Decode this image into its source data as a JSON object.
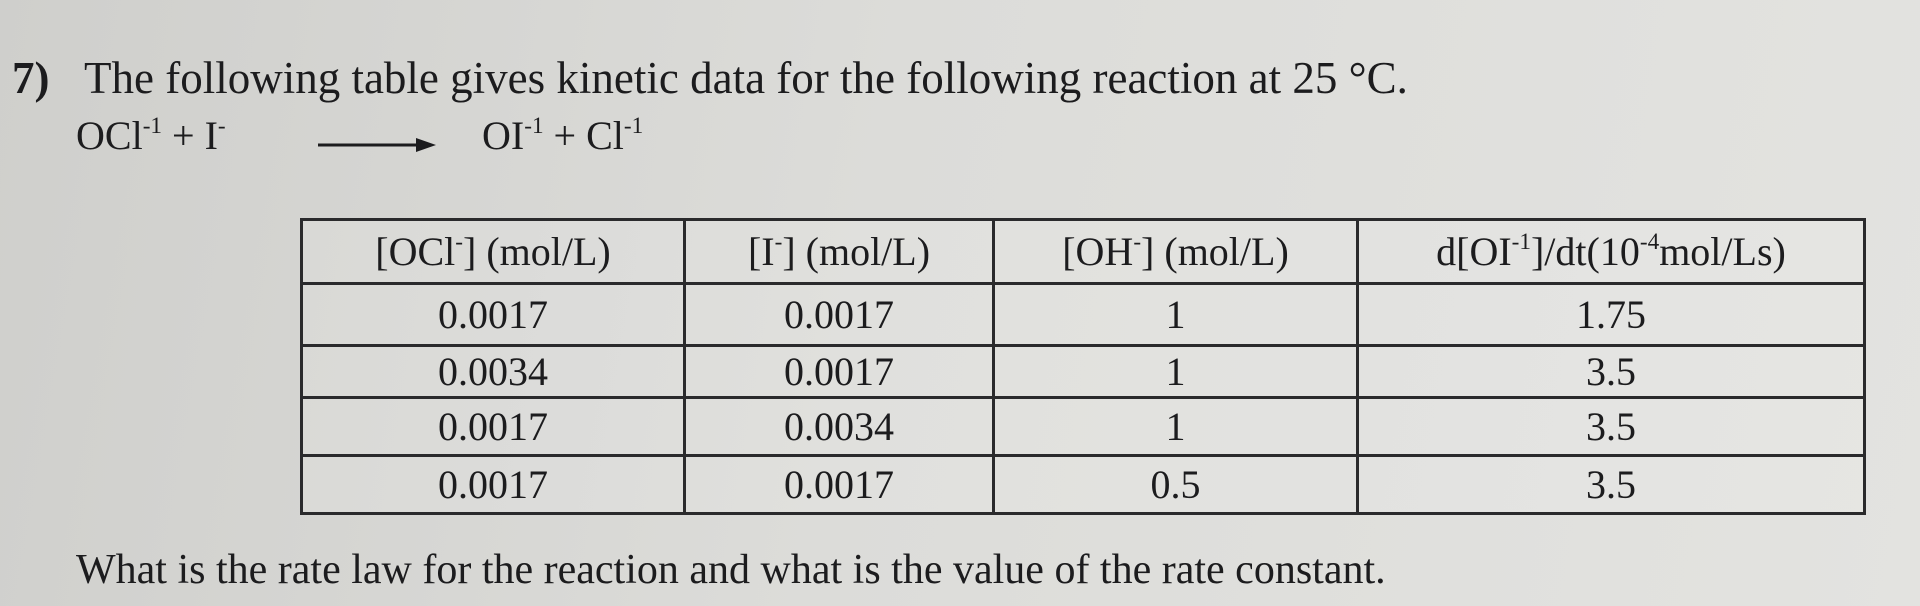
{
  "question": {
    "number": "7)",
    "text": "The following table gives kinetic data for the following reaction at 25 °C."
  },
  "reaction": {
    "left": [
      "OCl",
      "-1",
      " + I",
      "-"
    ],
    "right": [
      "OI",
      "-1",
      " + Cl",
      "-1"
    ]
  },
  "table": {
    "headers": [
      [
        "[OCl",
        "-",
        "] (mol/L)"
      ],
      [
        "[I",
        "-",
        "] (mol/L)"
      ],
      [
        "[OH",
        "-",
        "] (mol/L)"
      ],
      [
        "d[OI",
        "-1",
        "]/dt(10",
        "-4",
        "mol/Ls)"
      ]
    ],
    "rows": [
      [
        "0.0017",
        "0.0017",
        "1",
        "1.75"
      ],
      [
        "0.0034",
        "0.0017",
        "1",
        "3.5"
      ],
      [
        "0.0017",
        "0.0034",
        "1",
        "3.5"
      ],
      [
        "0.0017",
        "0.0017",
        "0.5",
        "3.5"
      ]
    ]
  },
  "footer": "What is the rate law for the reaction and what is the value of the rate constant."
}
